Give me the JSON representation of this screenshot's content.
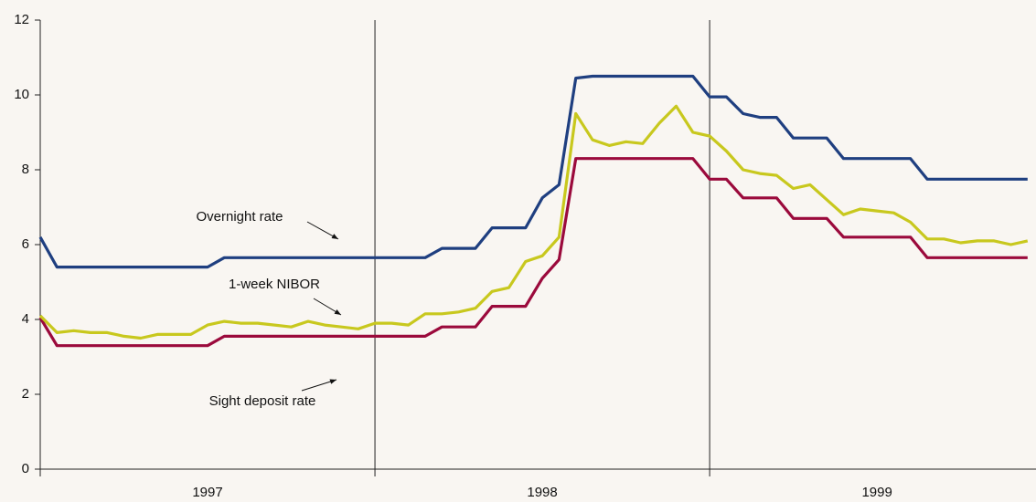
{
  "chart_data": {
    "type": "line",
    "x": [
      1997,
      1997.05,
      1997.1,
      1997.15,
      1997.2,
      1997.25,
      1997.3,
      1997.35,
      1997.4,
      1997.45,
      1997.5,
      1997.55,
      1997.6,
      1997.65,
      1997.7,
      1997.75,
      1997.8,
      1997.85,
      1997.9,
      1997.95,
      1998,
      1998.05,
      1998.1,
      1998.15,
      1998.2,
      1998.25,
      1998.3,
      1998.35,
      1998.4,
      1998.45,
      1998.5,
      1998.55,
      1998.6,
      1998.65,
      1998.7,
      1998.75,
      1998.8,
      1998.85,
      1998.9,
      1998.95,
      1999,
      1999.05,
      1999.1,
      1999.15,
      1999.2,
      1999.25,
      1999.3,
      1999.35,
      1999.4,
      1999.45,
      1999.5,
      1999.55,
      1999.6,
      1999.65,
      1999.7,
      1999.75,
      1999.8,
      1999.85,
      1999.9,
      1999.95
    ],
    "series": [
      {
        "name": "Overnight rate",
        "color": "#1f3f80",
        "values": [
          6.2,
          5.4,
          5.4,
          5.4,
          5.4,
          5.4,
          5.4,
          5.4,
          5.4,
          5.4,
          5.4,
          5.65,
          5.65,
          5.65,
          5.65,
          5.65,
          5.65,
          5.65,
          5.65,
          5.65,
          5.65,
          5.65,
          5.65,
          5.65,
          5.9,
          5.9,
          5.9,
          6.45,
          6.45,
          6.45,
          7.25,
          7.6,
          10.45,
          10.5,
          10.5,
          10.5,
          10.5,
          10.5,
          10.5,
          10.5,
          9.95,
          9.95,
          9.5,
          9.4,
          9.4,
          8.85,
          8.85,
          8.85,
          8.3,
          8.3,
          8.3,
          8.3,
          8.3,
          7.75,
          7.75,
          7.75,
          7.75,
          7.75,
          7.75,
          7.75
        ]
      },
      {
        "name": "1-week NIBOR",
        "color": "#c8c81e",
        "values": [
          4.1,
          3.65,
          3.7,
          3.65,
          3.65,
          3.55,
          3.5,
          3.6,
          3.6,
          3.6,
          3.85,
          3.95,
          3.9,
          3.9,
          3.85,
          3.8,
          3.95,
          3.85,
          3.8,
          3.75,
          3.9,
          3.9,
          3.85,
          4.15,
          4.15,
          4.2,
          4.3,
          4.75,
          4.85,
          5.55,
          5.7,
          6.2,
          9.5,
          8.8,
          8.65,
          8.75,
          8.7,
          9.25,
          9.7,
          9.0,
          8.9,
          8.5,
          8.0,
          7.9,
          7.85,
          7.5,
          7.6,
          7.2,
          6.8,
          6.95,
          6.9,
          6.85,
          6.6,
          6.15,
          6.15,
          6.05,
          6.1,
          6.1,
          6.0,
          6.1
        ]
      },
      {
        "name": "Sight deposit rate",
        "color": "#9b0a3c",
        "values": [
          4.05,
          3.3,
          3.3,
          3.3,
          3.3,
          3.3,
          3.3,
          3.3,
          3.3,
          3.3,
          3.3,
          3.55,
          3.55,
          3.55,
          3.55,
          3.55,
          3.55,
          3.55,
          3.55,
          3.55,
          3.55,
          3.55,
          3.55,
          3.55,
          3.8,
          3.8,
          3.8,
          4.35,
          4.35,
          4.35,
          5.1,
          5.6,
          8.3,
          8.3,
          8.3,
          8.3,
          8.3,
          8.3,
          8.3,
          8.3,
          7.75,
          7.75,
          7.25,
          7.25,
          7.25,
          6.7,
          6.7,
          6.7,
          6.2,
          6.2,
          6.2,
          6.2,
          6.2,
          5.65,
          5.65,
          5.65,
          5.65,
          5.65,
          5.65,
          5.65
        ]
      }
    ],
    "xlim": [
      1997,
      1999.975
    ],
    "xticks": [
      1997,
      1998,
      1999
    ],
    "ylim": [
      0,
      12
    ],
    "yticks": [
      0,
      2,
      4,
      6,
      8,
      10,
      12
    ]
  }
}
